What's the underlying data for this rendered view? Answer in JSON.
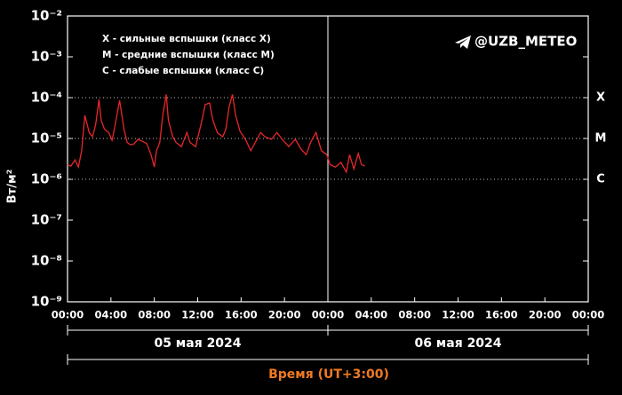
{
  "chart_data": {
    "type": "line",
    "ylabel": "Вт/м²",
    "xlabel": "Время (UT+3:00)",
    "watermark": "@UZB_METEO",
    "notes": [
      "X - сильные вспышки (класс X)",
      "M - средние вспышки (класс M)",
      "C - слабые вспышки (класс C)"
    ],
    "dates": [
      "05 мая 2024",
      "06 мая 2024"
    ],
    "log_y": true,
    "color": "#e8262a",
    "levels": [
      {
        "value": 0.0001,
        "label": "X"
      },
      {
        "value": 1e-05,
        "label": "M"
      },
      {
        "value": 1e-06,
        "label": "C"
      }
    ],
    "xlim": [
      0,
      48
    ],
    "xticks": [
      {
        "value": 0,
        "label": "00:00"
      },
      {
        "value": 4,
        "label": "04:00"
      },
      {
        "value": 8,
        "label": "08:00"
      },
      {
        "value": 12,
        "label": "12:00"
      },
      {
        "value": 16,
        "label": "16:00"
      },
      {
        "value": 20,
        "label": "20:00"
      },
      {
        "value": 24,
        "label": "00:00"
      },
      {
        "value": 28,
        "label": "04:00"
      },
      {
        "value": 32,
        "label": "08:00"
      },
      {
        "value": 36,
        "label": "12:00"
      },
      {
        "value": 40,
        "label": "16:00"
      },
      {
        "value": 44,
        "label": "20:00"
      },
      {
        "value": 48,
        "label": "00:00"
      }
    ],
    "ylim": [
      1e-09,
      0.01
    ],
    "yticks": [
      {
        "value": 1e-09,
        "label": "10⁻⁹"
      },
      {
        "value": 1e-08,
        "label": "10⁻⁸"
      },
      {
        "value": 1e-07,
        "label": "10⁻⁷"
      },
      {
        "value": 1e-06,
        "label": "10⁻⁶"
      },
      {
        "value": 1e-05,
        "label": "10⁻⁵"
      },
      {
        "value": 0.0001,
        "label": "10⁻⁴"
      },
      {
        "value": 0.001,
        "label": "10⁻³"
      },
      {
        "value": 0.01,
        "label": "10⁻²"
      }
    ],
    "x": [
      0,
      0.3,
      0.7,
      1.0,
      1.3,
      1.6,
      2.0,
      2.3,
      2.6,
      2.9,
      3.1,
      3.4,
      3.8,
      4.1,
      4.4,
      4.8,
      5.2,
      5.5,
      5.8,
      6.1,
      6.5,
      6.9,
      7.3,
      7.7,
      8.0,
      8.2,
      8.5,
      8.8,
      9.1,
      9.3,
      9.7,
      10.0,
      10.5,
      11.0,
      11.3,
      11.8,
      12.3,
      12.7,
      13.1,
      13.4,
      13.8,
      14.3,
      14.6,
      14.9,
      15.2,
      15.5,
      15.9,
      16.4,
      16.9,
      17.3,
      17.8,
      18.2,
      18.8,
      19.3,
      19.8,
      20.4,
      21.0,
      21.5,
      22.0,
      22.4,
      22.9,
      23.4,
      23.9,
      24.2,
      24.7,
      25.2,
      25.7,
      26.0,
      26.4,
      26.8,
      27.1,
      27.4
    ],
    "values": [
      2.3e-06,
      2.1e-06,
      3e-06,
      2e-06,
      5e-06,
      3.7e-05,
      1.4e-05,
      1.1e-05,
      2.2e-05,
      9e-05,
      2.8e-05,
      1.7e-05,
      1.4e-05,
      9e-06,
      2.2e-05,
      8.6e-05,
      1.7e-05,
      8e-06,
      7e-06,
      7.3e-06,
      9.5e-06,
      8.5e-06,
      7.5e-06,
      4e-06,
      2e-06,
      5e-06,
      8e-06,
      4e-05,
      0.00012,
      2.8e-05,
      1.1e-05,
      8e-06,
      6.3e-06,
      1.4e-05,
      8e-06,
      6.3e-06,
      2.2e-05,
      6.8e-05,
      7.4e-05,
      2.8e-05,
      1.4e-05,
      1.1e-05,
      1.7e-05,
      6e-05,
      0.00012,
      3.7e-05,
      1.5e-05,
      9.5e-06,
      5e-06,
      8e-06,
      1.4e-05,
      1.1e-05,
      9.5e-06,
      1.4e-05,
      9.5e-06,
      6.3e-06,
      9.5e-06,
      5.6e-06,
      4e-06,
      8e-06,
      1.4e-05,
      5e-06,
      4e-06,
      2.3e-06,
      2e-06,
      2.6e-06,
      1.5e-06,
      4e-06,
      1.8e-06,
      4.3e-06,
      2.3e-06,
      2.1e-06
    ]
  }
}
